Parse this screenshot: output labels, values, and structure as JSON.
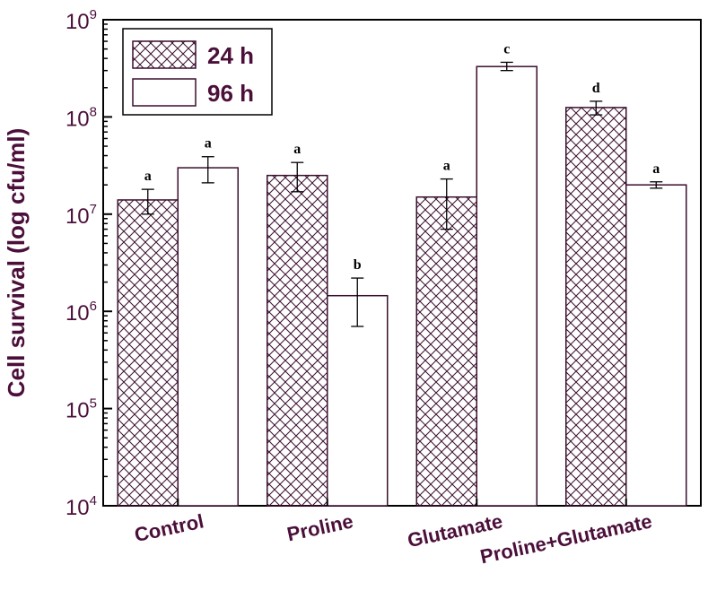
{
  "chart_data": {
    "type": "bar",
    "ylabel": "Cell survival (log cfu/ml)",
    "yscale": "log",
    "ylim": [
      10000,
      1000000000
    ],
    "yticks": [
      {
        "value": 10000,
        "base": "10",
        "exp": "4"
      },
      {
        "value": 100000,
        "base": "10",
        "exp": "5"
      },
      {
        "value": 1000000,
        "base": "10",
        "exp": "6"
      },
      {
        "value": 10000000,
        "base": "10",
        "exp": "7"
      },
      {
        "value": 100000000,
        "base": "10",
        "exp": "8"
      },
      {
        "value": 1000000000,
        "base": "10",
        "exp": "9"
      }
    ],
    "categories": [
      "Control",
      "Proline",
      "Glutamate",
      "Proline+Glutamate"
    ],
    "legend_position": "top-left",
    "series": [
      {
        "name": "24 h",
        "pattern": "crosshatch",
        "values": [
          14000000,
          25000000,
          15000000,
          125000000
        ],
        "errors": [
          [
            10000000,
            18000000
          ],
          [
            17000000,
            34000000
          ],
          [
            7000000,
            23000000
          ],
          [
            105000000,
            145000000
          ]
        ],
        "letters": [
          "a",
          "a",
          "a",
          "d"
        ]
      },
      {
        "name": "96 h",
        "pattern": "none",
        "values": [
          30000000,
          1450000,
          330000000,
          20000000
        ],
        "errors": [
          [
            21000000,
            39000000
          ],
          [
            700000,
            2200000
          ],
          [
            300000000,
            365000000
          ],
          [
            18500000,
            21500000
          ]
        ],
        "letters": [
          "a",
          "b",
          "c",
          "a"
        ]
      }
    ]
  },
  "colors": {
    "text": "#4b0f3a",
    "bar_stroke": "#3a0f2e",
    "hatch": "#3a0f2e",
    "error": "#000000"
  }
}
